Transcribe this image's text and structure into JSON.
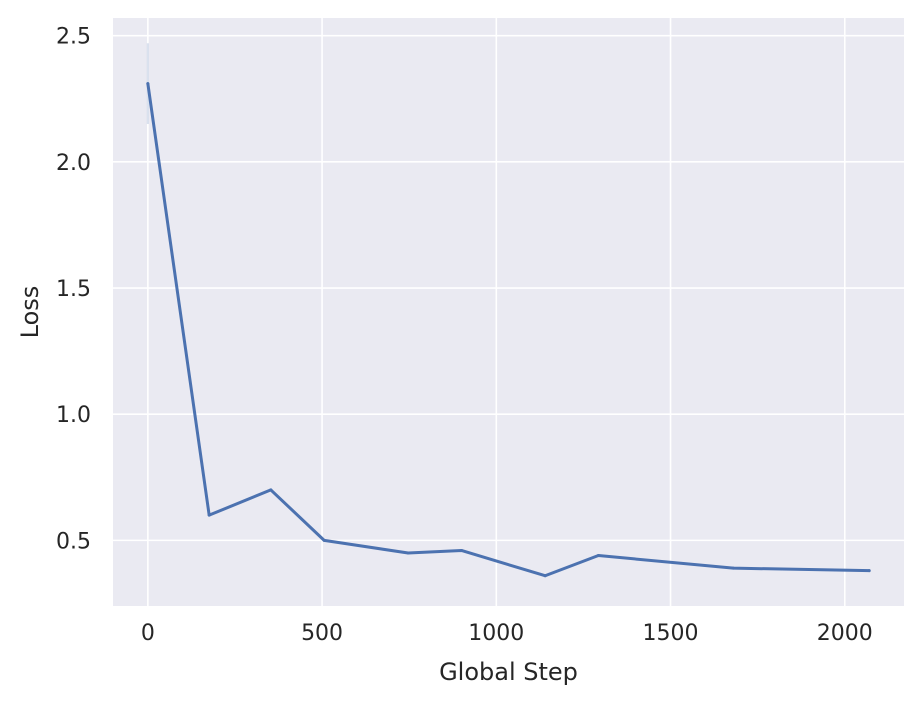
{
  "chart_data": {
    "type": "line",
    "title": "",
    "xlabel": "Global Step",
    "ylabel": "Loss",
    "xlim": [
      -100,
      2170
    ],
    "ylim": [
      0.24,
      2.57
    ],
    "grid": true,
    "legend": "none",
    "x_ticks": [
      0,
      500,
      1000,
      1500,
      2000
    ],
    "x_tick_labels": [
      "0",
      "500",
      "1000",
      "1500",
      "2000"
    ],
    "y_ticks": [
      0.5,
      1.0,
      1.5,
      2.0,
      2.5
    ],
    "y_tick_labels": [
      "0.5",
      "1.0",
      "1.5",
      "2.0",
      "2.5"
    ],
    "series": [
      {
        "x": [
          0,
          176,
          353,
          506,
          747,
          900,
          1140,
          1293,
          1680,
          2070
        ],
        "y": [
          2.31,
          0.6,
          0.7,
          0.5,
          0.45,
          0.46,
          0.36,
          0.44,
          0.39,
          0.38
        ],
        "color": "#4c72b0",
        "band": {
          "x": 0,
          "low": 2.15,
          "high": 2.47
        }
      }
    ],
    "colors": {
      "plot_background": "#eaeaf2",
      "grid": "#ffffff",
      "text": "#262626"
    }
  }
}
